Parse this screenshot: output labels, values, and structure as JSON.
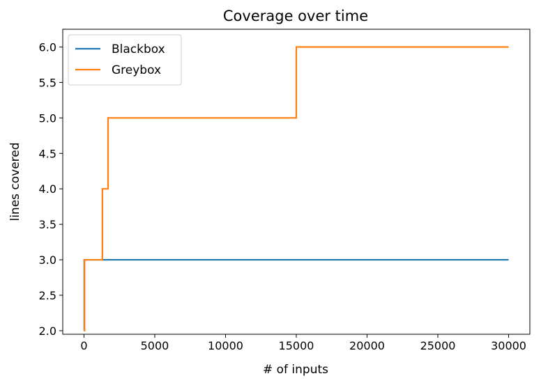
{
  "chart_data": {
    "type": "line",
    "title": "Coverage over time",
    "xlabel": "# of inputs",
    "ylabel": "lines covered",
    "xlim": [
      -1500,
      31500
    ],
    "ylim": [
      1.95,
      6.25
    ],
    "xticks": [
      0,
      5000,
      10000,
      15000,
      20000,
      25000,
      30000
    ],
    "xtick_labels": [
      "0",
      "5000",
      "10000",
      "15000",
      "20000",
      "25000",
      "30000"
    ],
    "yticks": [
      2.0,
      2.5,
      3.0,
      3.5,
      4.0,
      4.5,
      5.0,
      5.5,
      6.0
    ],
    "ytick_labels": [
      "2.0",
      "2.5",
      "3.0",
      "3.5",
      "4.0",
      "4.5",
      "5.0",
      "5.5",
      "6.0"
    ],
    "grid": false,
    "legend_position": "top-left",
    "series": [
      {
        "name": "Blackbox",
        "color": "#1f77b4",
        "step": true,
        "points": [
          [
            0,
            2
          ],
          [
            20,
            2
          ],
          [
            20,
            3
          ],
          [
            30000,
            3
          ]
        ]
      },
      {
        "name": "Greybox",
        "color": "#ff7f0e",
        "step": true,
        "points": [
          [
            0,
            2
          ],
          [
            40,
            2
          ],
          [
            40,
            3
          ],
          [
            1300,
            3
          ],
          [
            1300,
            4
          ],
          [
            1700,
            4
          ],
          [
            1700,
            5
          ],
          [
            15000,
            5
          ],
          [
            15000,
            6
          ],
          [
            30000,
            6
          ]
        ]
      }
    ]
  }
}
